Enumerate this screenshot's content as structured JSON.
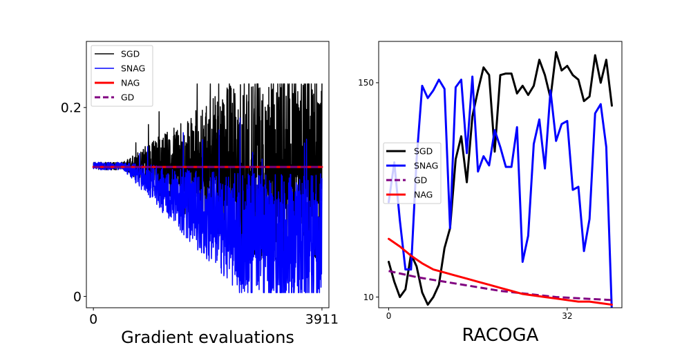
{
  "chart_data": [
    {
      "type": "line",
      "xlabel": "Gradient evaluations",
      "ylabel": "",
      "xlim": [
        -120,
        4030
      ],
      "ylim": [
        -0.012,
        0.27
      ],
      "xticks": [
        0,
        3911
      ],
      "xtick_labels": [
        "0",
        "3911"
      ],
      "yticks": [
        0,
        0.2
      ],
      "ytick_labels": [
        "0",
        "0.2"
      ],
      "legend_position": "top-left",
      "series": [
        {
          "name": "SGD",
          "color": "#000000",
          "style": "solid",
          "width": 1.5,
          "kind": "noisy",
          "start": 0,
          "end": 3911,
          "base": 0.138,
          "spread_start": 0.004,
          "spread_end": 0.1,
          "min_floor": 0.01,
          "max_peak": 0.225,
          "seed": 7
        },
        {
          "name": "SNAG",
          "color": "#0000ff",
          "style": "solid",
          "width": 1.5,
          "kind": "noisy",
          "start": 0,
          "end": 3911,
          "base_start": 0.138,
          "base_end": 0.06,
          "spread_start": 0.004,
          "spread_end": 0.07,
          "min_floor": 0.004,
          "max_peak": 0.195,
          "seed": 13
        },
        {
          "name": "NAG",
          "color": "#ff0000",
          "style": "solid",
          "width": 3,
          "kind": "flat",
          "x": [
            0,
            3911
          ],
          "y": [
            0.137,
            0.137
          ]
        },
        {
          "name": "GD",
          "color": "#800080",
          "style": "dashed",
          "width": 3,
          "kind": "flat",
          "x": [
            0,
            3911
          ],
          "y": [
            0.137,
            0.137
          ]
        }
      ]
    },
    {
      "type": "line",
      "xlabel": "RACOGA",
      "ylabel": "",
      "xlim": [
        -1.8,
        41.8
      ],
      "ylim": [
        3,
        177
      ],
      "xticks": [
        0,
        32
      ],
      "xtick_labels": [
        "0",
        "32"
      ],
      "yticks": [
        10,
        150
      ],
      "ytick_labels": [
        "10",
        "150"
      ],
      "legend_position": "center-left",
      "series": [
        {
          "name": "SGD",
          "color": "#000000",
          "style": "solid",
          "width": 3,
          "x": [
            0,
            1,
            2,
            3,
            4,
            5,
            6,
            7,
            8,
            9,
            10,
            11,
            12,
            13,
            14,
            15,
            16,
            17,
            18,
            19,
            20,
            21,
            22,
            23,
            24,
            25,
            26,
            27,
            28,
            29,
            30,
            31,
            32,
            33,
            34,
            35,
            36,
            37,
            38,
            39,
            40
          ],
          "y": [
            33,
            20,
            10,
            15,
            38,
            30,
            13,
            5,
            10,
            18,
            42,
            55,
            100,
            115,
            85,
            128,
            145,
            160,
            155,
            105,
            155,
            156,
            156,
            143,
            148,
            142,
            148,
            165,
            155,
            140,
            170,
            158,
            161,
            155,
            152,
            138,
            141,
            168,
            150,
            165,
            135
          ]
        },
        {
          "name": "SNAG",
          "color": "#0000ff",
          "style": "solid",
          "width": 3,
          "x": [
            0,
            1,
            2,
            3,
            4,
            5,
            6,
            7,
            8,
            9,
            10,
            11,
            12,
            13,
            14,
            15,
            16,
            17,
            18,
            19,
            20,
            21,
            22,
            23,
            24,
            25,
            26,
            27,
            28,
            29,
            30,
            31,
            32,
            33,
            34,
            35,
            36,
            37,
            38,
            39,
            40
          ],
          "y": [
            72,
            98,
            60,
            28,
            28,
            100,
            148,
            140,
            145,
            152,
            146,
            55,
            147,
            152,
            104,
            154,
            92,
            102,
            96,
            119,
            108,
            95,
            95,
            121,
            33,
            50,
            110,
            126,
            94,
            145,
            112,
            123,
            125,
            80,
            82,
            40,
            61,
            130,
            136,
            108,
            0
          ]
        },
        {
          "name": "GD",
          "color": "#800080",
          "style": "dashed",
          "width": 3,
          "x": [
            0,
            5,
            10,
            15,
            20,
            25,
            30,
            35,
            40
          ],
          "y": [
            27,
            23,
            20,
            17,
            14,
            12,
            10,
            9,
            8
          ]
        },
        {
          "name": "NAG",
          "color": "#ff0000",
          "style": "solid",
          "width": 3,
          "x": [
            0,
            2,
            4,
            6,
            8,
            10,
            12,
            14,
            16,
            18,
            20,
            22,
            24,
            26,
            28,
            30,
            32,
            34,
            36,
            38,
            40
          ],
          "y": [
            48,
            43,
            37,
            32,
            28,
            26,
            24,
            22,
            20,
            18,
            16,
            14,
            12,
            11,
            10,
            9,
            8,
            7,
            7,
            6,
            5
          ]
        }
      ]
    }
  ]
}
